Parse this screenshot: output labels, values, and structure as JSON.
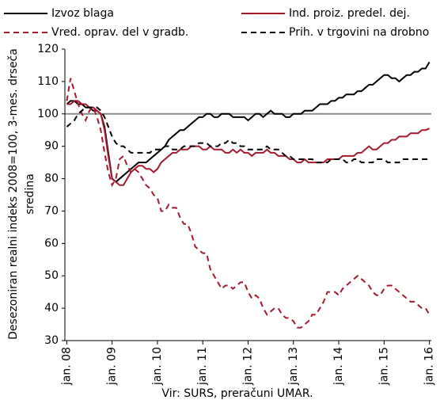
{
  "chart_data": {
    "type": "line",
    "ylabel": [
      "Desezoniran realni indeks 2008=100, 3-mes. drseča",
      "sredina"
    ],
    "source": "Vir: SURS, preračuni UMAR.",
    "legend": "top",
    "hline": 100,
    "ylim": [
      30,
      120
    ],
    "yticks": [
      30,
      40,
      50,
      60,
      70,
      80,
      90,
      100,
      110,
      120
    ],
    "categories": [
      "jan. 08",
      null,
      null,
      null,
      null,
      null,
      null,
      null,
      null,
      null,
      null,
      null,
      "jan. 09",
      null,
      null,
      null,
      null,
      null,
      null,
      null,
      null,
      null,
      null,
      null,
      "jan. 10",
      null,
      null,
      null,
      null,
      null,
      null,
      null,
      null,
      null,
      null,
      null,
      "jan. 11",
      null,
      null,
      null,
      null,
      null,
      null,
      null,
      null,
      null,
      null,
      null,
      "jan. 12",
      null,
      null,
      null,
      null,
      null,
      null,
      null,
      null,
      null,
      null,
      null,
      "jan. 13",
      null,
      null,
      null,
      null,
      null,
      null,
      null,
      null,
      null,
      null,
      null,
      "jan. 14",
      null,
      null,
      null,
      null,
      null,
      null,
      null,
      null,
      null,
      null,
      null,
      "jan. 15",
      null,
      null,
      null,
      null,
      null,
      null,
      null,
      null,
      null,
      null,
      null,
      "jan. 16"
    ],
    "series": [
      {
        "name": "Izvoz blaga",
        "color": "#000000",
        "dash": "solid",
        "values": [
          103,
          104,
          104,
          103,
          103,
          102,
          102,
          101,
          101,
          100,
          96,
          88,
          80,
          79,
          80,
          81,
          82,
          83,
          84,
          85,
          85,
          85,
          86,
          87,
          88,
          89,
          90,
          92,
          93,
          94,
          95,
          95,
          96,
          97,
          98,
          99,
          99,
          100,
          100,
          99,
          99,
          100,
          100,
          100,
          99,
          99,
          99,
          99,
          98,
          99,
          100,
          100,
          99,
          100,
          101,
          100,
          100,
          100,
          99,
          99,
          100,
          100,
          100,
          101,
          101,
          101,
          102,
          103,
          103,
          103,
          104,
          104,
          105,
          105,
          106,
          106,
          106,
          107,
          107,
          108,
          109,
          109,
          110,
          111,
          112,
          112,
          111,
          111,
          110,
          111,
          112,
          112,
          113,
          113,
          114,
          114,
          116
        ]
      },
      {
        "name": "Ind. proiz. predel. dej.",
        "color": "#a5182e",
        "dash": "solid",
        "values": [
          103,
          103,
          104,
          104,
          103,
          103,
          102,
          102,
          101,
          100,
          95,
          87,
          80,
          79,
          78,
          78,
          80,
          82,
          83,
          84,
          84,
          83,
          83,
          82,
          83,
          85,
          86,
          87,
          88,
          88,
          89,
          89,
          89,
          90,
          90,
          90,
          89,
          89,
          90,
          89,
          89,
          89,
          88,
          88,
          89,
          88,
          89,
          88,
          88,
          87,
          88,
          88,
          88,
          89,
          88,
          88,
          87,
          87,
          87,
          86,
          86,
          85,
          85,
          86,
          85,
          85,
          85,
          85,
          85,
          86,
          86,
          86,
          86,
          87,
          87,
          87,
          87,
          88,
          88,
          89,
          90,
          89,
          89,
          90,
          91,
          91,
          92,
          92,
          93,
          93,
          93,
          94,
          94,
          94,
          95,
          95,
          95.5
        ]
      },
      {
        "name": "Vred. oprav. del v gradb.",
        "color": "#a5182e",
        "dash": "dashed",
        "values": [
          104,
          111,
          107,
          103,
          100,
          98,
          101,
          102,
          99,
          95,
          88,
          82,
          78,
          80,
          86,
          87,
          84,
          82,
          83,
          82,
          80,
          78,
          77,
          75,
          74,
          70,
          70,
          72,
          71,
          71,
          68,
          66,
          66,
          63,
          59,
          58,
          57,
          57,
          52,
          50,
          48,
          46,
          47,
          47,
          46,
          47,
          48,
          48,
          45,
          43,
          44,
          43,
          40,
          38,
          39,
          40,
          40,
          38,
          37,
          37,
          36,
          34,
          34,
          35,
          36,
          38,
          38,
          40,
          42,
          45,
          45,
          45,
          44,
          46,
          47,
          48,
          49,
          50,
          49,
          48,
          47,
          45,
          44,
          44,
          46,
          47,
          47,
          46,
          45,
          44,
          43,
          42,
          42,
          41,
          40,
          40,
          38
        ]
      },
      {
        "name": "Prih. v trgovini na drobno",
        "color": "#000000",
        "dash": "dashed",
        "values": [
          96,
          97,
          98,
          100,
          101,
          102,
          102,
          102,
          102,
          101,
          99,
          96,
          93,
          91,
          90,
          90,
          89,
          88,
          88,
          88,
          88,
          88,
          88,
          89,
          89,
          89,
          90,
          90,
          89,
          89,
          89,
          90,
          90,
          90,
          90,
          91,
          91,
          91,
          90,
          90,
          90,
          91,
          91,
          92,
          91,
          91,
          90,
          90,
          89,
          89,
          89,
          89,
          89,
          90,
          89,
          89,
          89,
          88,
          87,
          87,
          86,
          86,
          86,
          86,
          86,
          86,
          85,
          85,
          85,
          85,
          86,
          86,
          86,
          86,
          85,
          85,
          86,
          86,
          85,
          85,
          85,
          85,
          86,
          86,
          86,
          85,
          85,
          85,
          85,
          86,
          86,
          86,
          86,
          86,
          86,
          86,
          86
        ]
      }
    ]
  }
}
